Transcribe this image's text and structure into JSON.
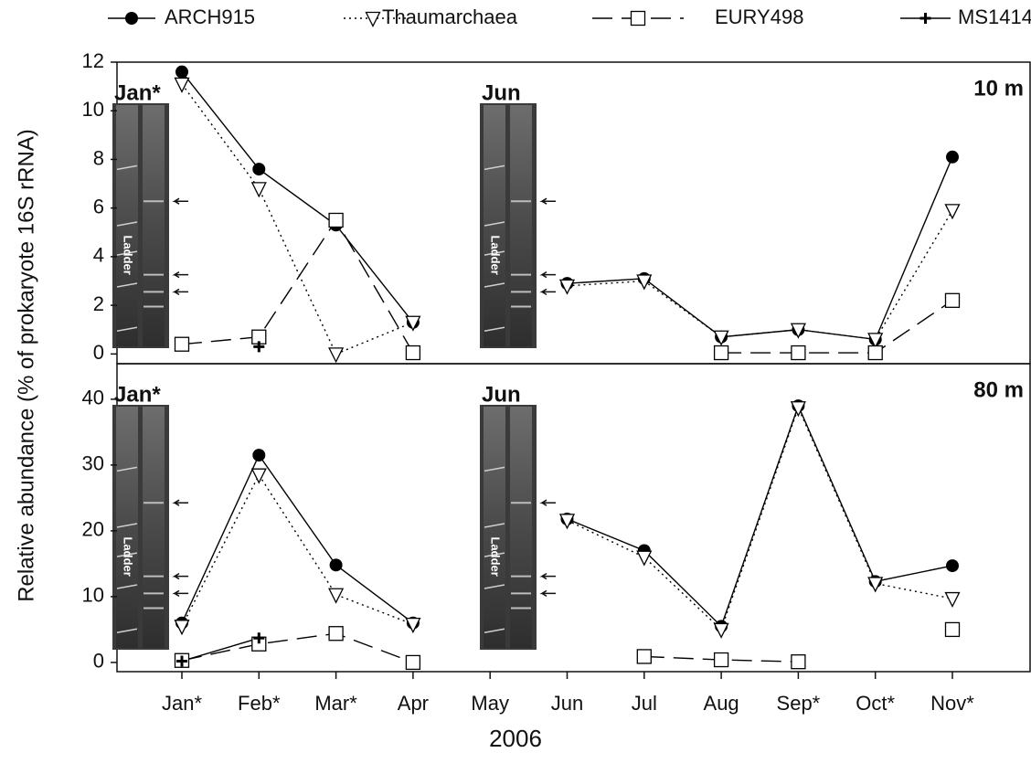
{
  "chart_data": [
    {
      "type": "line",
      "panel_label": "10 m",
      "categories": [
        "Jan*",
        "Feb*",
        "Mar*",
        "Apr",
        "May",
        "Jun",
        "Jul",
        "Aug",
        "Sep*",
        "Oct*",
        "Nov*"
      ],
      "series": [
        {
          "name": "ARCH915",
          "color": "#000000",
          "marker": "circle",
          "line_style": "solid",
          "values": [
            11.6,
            7.6,
            5.3,
            1.3,
            null,
            2.9,
            3.1,
            0.7,
            1.0,
            0.6,
            8.1
          ]
        },
        {
          "name": "Thaumarchaea",
          "color": "#000000",
          "marker": "triangle",
          "line_style": "dotted",
          "values": [
            11.1,
            6.8,
            0,
            1.3,
            null,
            2.8,
            3.0,
            0.7,
            1.0,
            0.6,
            5.9
          ]
        },
        {
          "name": "EURY498",
          "color": "#000000",
          "marker": "square",
          "line_style": "dashed",
          "values": [
            0.4,
            0.7,
            5.5,
            0.05,
            null,
            null,
            null,
            0.05,
            0.05,
            0.05,
            2.2
          ]
        },
        {
          "name": "MS1414",
          "color": "#000000",
          "marker": "cross",
          "line_style": "solid",
          "values": [
            null,
            0.3,
            null,
            null,
            null,
            null,
            null,
            null,
            null,
            null,
            null
          ]
        }
      ],
      "ylim": [
        -0.4,
        12
      ],
      "yticks": [
        0,
        2,
        4,
        6,
        8,
        10,
        12
      ],
      "insets": [
        {
          "label": "Jan*",
          "lane_label": "Ladder"
        },
        {
          "label": "Jun",
          "lane_label": "Ladder"
        }
      ]
    },
    {
      "type": "line",
      "panel_label": "80 m",
      "categories": [
        "Jan*",
        "Feb*",
        "Mar*",
        "Apr",
        "May",
        "Jun",
        "Jul",
        "Aug",
        "Sep*",
        "Oct*",
        "Nov*"
      ],
      "series": [
        {
          "name": "ARCH915",
          "color": "#000000",
          "marker": "circle",
          "line_style": "solid",
          "values": [
            6,
            31.5,
            14.8,
            6,
            null,
            21.8,
            17,
            5.5,
            39,
            12.3,
            14.7
          ]
        },
        {
          "name": "Thaumarchaea",
          "color": "#000000",
          "marker": "triangle",
          "line_style": "dotted",
          "values": [
            5.5,
            28.5,
            10.3,
            5.8,
            null,
            21.6,
            16,
            5,
            38.7,
            12,
            9.7
          ]
        },
        {
          "name": "EURY498",
          "color": "#000000",
          "marker": "square",
          "line_style": "dashed",
          "values": [
            0.3,
            2.8,
            4.4,
            0,
            null,
            null,
            0.9,
            0.4,
            0.1,
            null,
            5
          ]
        },
        {
          "name": "MS1414",
          "color": "#000000",
          "marker": "cross",
          "line_style": "solid",
          "values": [
            0.2,
            3.7,
            null,
            null,
            null,
            null,
            null,
            null,
            null,
            null,
            null
          ]
        }
      ],
      "ylim": [
        -1.4,
        45.4
      ],
      "yticks": [
        0,
        10,
        20,
        30,
        40
      ],
      "insets": [
        {
          "label": "Jan*",
          "lane_label": "Ladder"
        },
        {
          "label": "Jun",
          "lane_label": "Ladder"
        }
      ]
    },
    {
      "ylabel": "Relative abundance (% of prokaryote 16S rRNA)",
      "xlabel": "2006"
    }
  ]
}
